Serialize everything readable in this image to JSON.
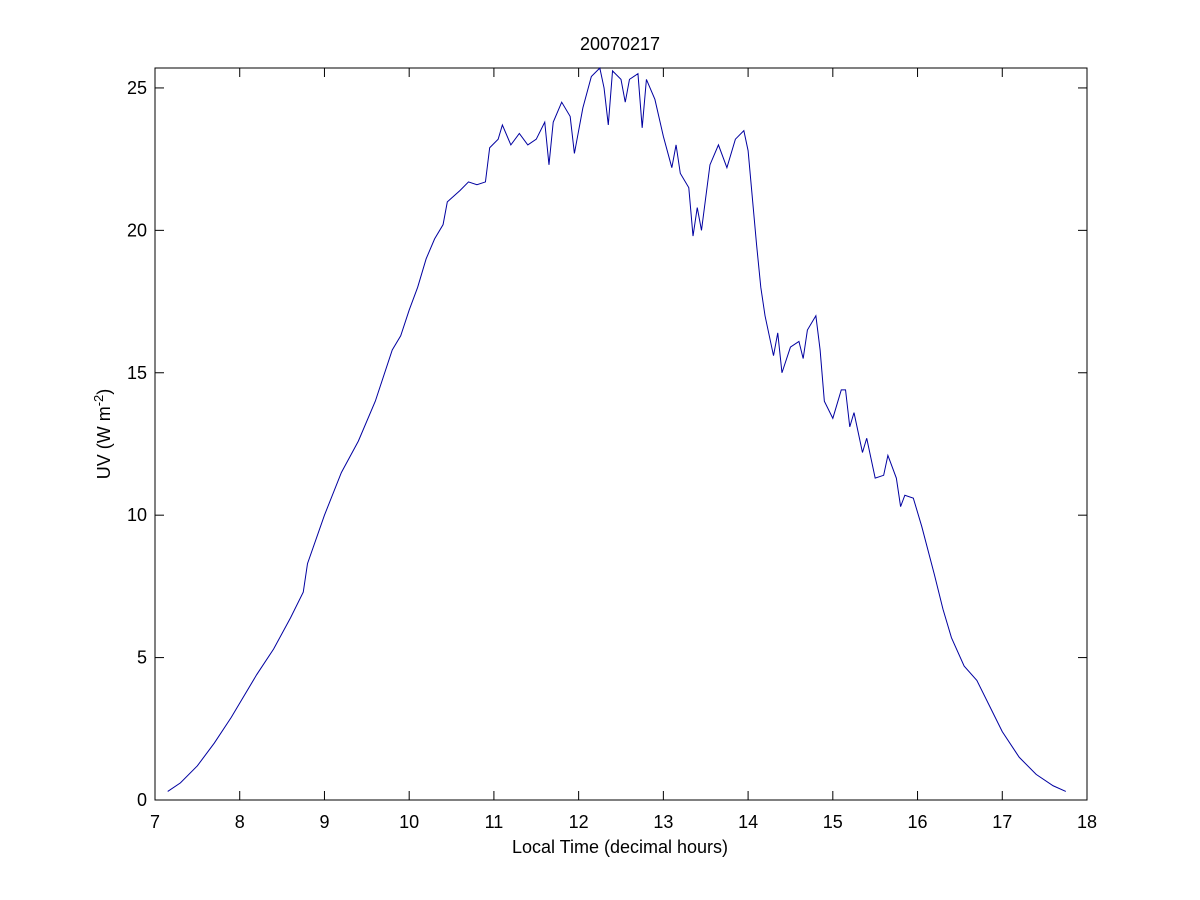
{
  "chart_data": {
    "type": "line",
    "title": "20070217",
    "x_label": "Local Time (decimal hours)",
    "y_label": {
      "text": "UV (W m",
      "superscript": "-2",
      "suffix": ")"
    },
    "xlim": [
      7,
      18
    ],
    "xticks": [
      7,
      8,
      9,
      10,
      11,
      12,
      13,
      14,
      15,
      16,
      17,
      18
    ],
    "ylim": [
      0,
      25.7
    ],
    "yticks": [
      0,
      5,
      10,
      15,
      20,
      25
    ],
    "grid": false,
    "series": [
      {
        "color": "#0000a0",
        "x": [
          7.15,
          7.3,
          7.5,
          7.7,
          7.9,
          8.0,
          8.2,
          8.4,
          8.6,
          8.75,
          8.8,
          9.0,
          9.2,
          9.4,
          9.6,
          9.8,
          9.9,
          10.0,
          10.1,
          10.2,
          10.3,
          10.4,
          10.45,
          10.6,
          10.7,
          10.8,
          10.9,
          10.95,
          11.05,
          11.1,
          11.2,
          11.3,
          11.4,
          11.5,
          11.6,
          11.65,
          11.7,
          11.8,
          11.9,
          11.95,
          12.05,
          12.15,
          12.25,
          12.3,
          12.35,
          12.4,
          12.5,
          12.55,
          12.6,
          12.7,
          12.75,
          12.8,
          12.9,
          13.0,
          13.1,
          13.15,
          13.2,
          13.3,
          13.35,
          13.4,
          13.45,
          13.55,
          13.65,
          13.75,
          13.85,
          13.95,
          14.0,
          14.1,
          14.15,
          14.2,
          14.3,
          14.35,
          14.4,
          14.5,
          14.6,
          14.65,
          14.7,
          14.8,
          14.85,
          14.9,
          15.0,
          15.1,
          15.15,
          15.2,
          15.25,
          15.35,
          15.4,
          15.5,
          15.6,
          15.65,
          15.75,
          15.8,
          15.85,
          15.95,
          16.05,
          16.2,
          16.3,
          16.4,
          16.55,
          16.7,
          16.85,
          17.0,
          17.2,
          17.4,
          17.6,
          17.75
        ],
        "values": [
          0.3,
          0.6,
          1.2,
          2.0,
          2.9,
          3.4,
          4.4,
          5.3,
          6.4,
          7.3,
          8.3,
          10.0,
          11.5,
          12.6,
          14.0,
          15.8,
          16.3,
          17.2,
          18.0,
          19.0,
          19.7,
          20.2,
          21.0,
          21.4,
          21.7,
          21.6,
          21.7,
          22.9,
          23.2,
          23.7,
          23.0,
          23.4,
          23.0,
          23.2,
          23.8,
          22.3,
          23.8,
          24.5,
          24.0,
          22.7,
          24.3,
          25.4,
          25.7,
          25.0,
          23.7,
          25.6,
          25.3,
          24.5,
          25.3,
          25.5,
          23.6,
          25.3,
          24.6,
          23.3,
          22.2,
          23.0,
          22.0,
          21.5,
          19.8,
          20.8,
          20.0,
          22.3,
          23.0,
          22.2,
          23.2,
          23.5,
          22.8,
          19.5,
          18.0,
          17.0,
          15.6,
          16.4,
          15.0,
          15.9,
          16.1,
          15.5,
          16.5,
          17.0,
          15.8,
          14.0,
          13.4,
          14.4,
          14.4,
          13.1,
          13.6,
          12.2,
          12.7,
          11.3,
          11.4,
          12.1,
          11.3,
          10.3,
          10.7,
          10.6,
          9.6,
          7.9,
          6.7,
          5.7,
          4.7,
          4.2,
          3.3,
          2.4,
          1.5,
          0.9,
          0.5,
          0.3
        ]
      }
    ]
  }
}
